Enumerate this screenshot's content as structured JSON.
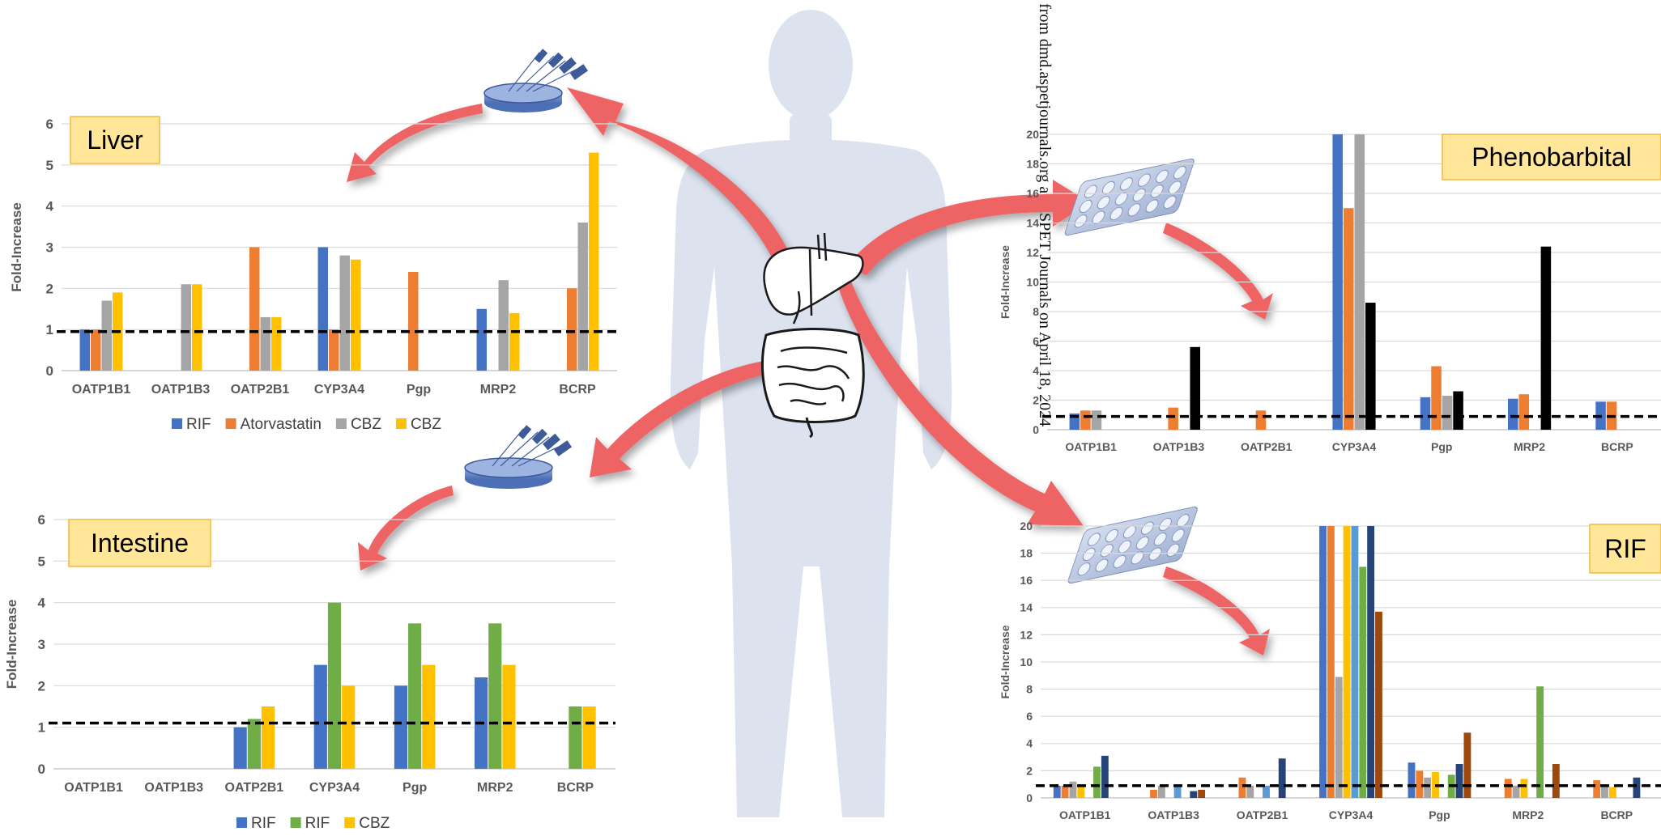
{
  "watermark": "from dmd.aspetjournals.org at ASPET Journals on April 18, 2024",
  "colors": {
    "blue": "#4472C4",
    "orange": "#ED7D31",
    "gray": "#A5A5A5",
    "yellow": "#FFC000",
    "green": "#70AD47",
    "black": "#000000",
    "lightblue": "#5B9BD5",
    "darkblue": "#264478",
    "brown": "#9E480E",
    "label_fill": "#FFE699",
    "label_border": "#F4B942",
    "arrow": "#EE6464",
    "silhouette": "#DCE3EF"
  },
  "icons": [
    "petri-dish-syringes-icon",
    "well-plate-icon",
    "liver-icon",
    "intestine-icon",
    "human-silhouette-icon"
  ],
  "chart_data": [
    {
      "id": "liver",
      "type": "bar",
      "title": "Liver",
      "ylabel": "Fold-Increase",
      "categories": [
        "OATP1B1",
        "OATP1B3",
        "OATP2B1",
        "CYP3A4",
        "Pgp",
        "MRP2",
        "BCRP"
      ],
      "ylim": [
        0,
        6
      ],
      "yticks": [
        0,
        1,
        2,
        3,
        4,
        5,
        6
      ],
      "reference_line": 0.95,
      "grid": true,
      "legend_position": "bottom",
      "series": [
        {
          "name": "RIF",
          "color": "#4472C4",
          "values": [
            1.0,
            null,
            null,
            3.0,
            null,
            1.5,
            null
          ]
        },
        {
          "name": "Atorvastatin",
          "color": "#ED7D31",
          "values": [
            1.0,
            null,
            3.0,
            1.0,
            2.4,
            null,
            2.0
          ]
        },
        {
          "name": "CBZ",
          "color": "#A5A5A5",
          "values": [
            1.7,
            2.1,
            1.3,
            2.8,
            null,
            2.2,
            3.6
          ]
        },
        {
          "name": "CBZ",
          "color": "#FFC000",
          "values": [
            1.9,
            2.1,
            1.3,
            2.7,
            null,
            1.4,
            5.3
          ]
        }
      ]
    },
    {
      "id": "intestine",
      "type": "bar",
      "title": "Intestine",
      "ylabel": "Fold-Increase",
      "categories": [
        "OATP1B1",
        "OATP1B3",
        "OATP2B1",
        "CYP3A4",
        "Pgp",
        "MRP2",
        "BCRP"
      ],
      "ylim": [
        0,
        6
      ],
      "yticks": [
        0,
        1,
        2,
        3,
        4,
        5,
        6
      ],
      "reference_line": 1.1,
      "grid": true,
      "legend_position": "bottom",
      "series": [
        {
          "name": "RIF",
          "color": "#4472C4",
          "values": [
            null,
            null,
            1.0,
            2.5,
            2.0,
            2.2,
            null
          ]
        },
        {
          "name": "RIF",
          "color": "#70AD47",
          "values": [
            null,
            null,
            1.2,
            4.0,
            3.5,
            3.5,
            1.5
          ]
        },
        {
          "name": "CBZ",
          "color": "#FFC000",
          "values": [
            null,
            null,
            1.5,
            2.0,
            2.5,
            2.5,
            1.5
          ]
        }
      ]
    },
    {
      "id": "phenobarbital",
      "type": "bar",
      "title": "Phenobarbital",
      "ylabel": "Fold-Increase",
      "categories": [
        "OATP1B1",
        "OATP1B3",
        "OATP2B1",
        "CYP3A4",
        "Pgp",
        "MRP2",
        "BCRP"
      ],
      "ylim": [
        0,
        20
      ],
      "yticks": [
        0,
        2,
        4,
        6,
        8,
        10,
        12,
        14,
        16,
        18,
        20
      ],
      "reference_line": 0.9,
      "grid": true,
      "series": [
        {
          "color": "#4472C4",
          "values": [
            1.1,
            null,
            null,
            20,
            2.2,
            2.1,
            1.9
          ]
        },
        {
          "color": "#ED7D31",
          "values": [
            1.3,
            1.5,
            1.3,
            15,
            4.3,
            2.4,
            1.9
          ]
        },
        {
          "color": "#A5A5A5",
          "values": [
            1.3,
            null,
            null,
            20,
            2.3,
            null,
            null
          ]
        },
        {
          "color": "#000000",
          "values": [
            null,
            5.6,
            null,
            8.6,
            2.6,
            12.4,
            null
          ]
        }
      ]
    },
    {
      "id": "rif",
      "type": "bar",
      "title": "RIF",
      "ylabel": "Fold-Increase",
      "categories": [
        "OATP1B1",
        "OATP1B3",
        "OATP2B1",
        "CYP3A4",
        "Pgp",
        "MRP2",
        "BCRP"
      ],
      "ylim": [
        0,
        20
      ],
      "yticks": [
        0,
        2,
        4,
        6,
        8,
        10,
        12,
        14,
        16,
        18,
        20
      ],
      "reference_line": 0.9,
      "grid": true,
      "series": [
        {
          "color": "#4472C4",
          "values": [
            0.9,
            null,
            null,
            20,
            2.6,
            null,
            null
          ]
        },
        {
          "color": "#ED7D31",
          "values": [
            0.9,
            0.6,
            1.5,
            20,
            2.0,
            1.4,
            1.3
          ]
        },
        {
          "color": "#A5A5A5",
          "values": [
            1.2,
            0.9,
            0.9,
            8.9,
            1.5,
            0.9,
            0.8
          ]
        },
        {
          "color": "#FFC000",
          "values": [
            0.9,
            null,
            null,
            20,
            1.9,
            1.4,
            0.8
          ]
        },
        {
          "color": "#5B9BD5",
          "values": [
            null,
            0.9,
            0.9,
            20,
            null,
            null,
            null
          ]
        },
        {
          "color": "#70AD47",
          "values": [
            2.3,
            null,
            null,
            17,
            1.7,
            8.2,
            null
          ]
        },
        {
          "color": "#264478",
          "values": [
            3.1,
            0.5,
            2.9,
            20,
            2.5,
            null,
            1.5
          ]
        },
        {
          "color": "#9E480E",
          "values": [
            null,
            0.6,
            null,
            13.7,
            4.8,
            2.5,
            null
          ]
        }
      ]
    }
  ]
}
